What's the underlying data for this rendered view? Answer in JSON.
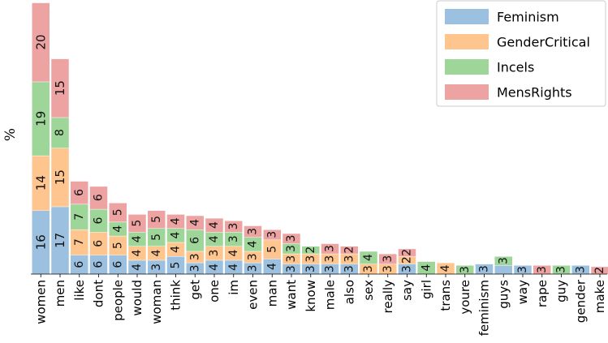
{
  "chart_data": {
    "type": "bar",
    "stacked": true,
    "title": "",
    "xlabel": "",
    "ylabel": "%",
    "ylim": [
      0,
      21
    ],
    "grid": false,
    "legend_position": "top-right",
    "categories": [
      "women",
      "men",
      "like",
      "dont",
      "people",
      "would",
      "woman",
      "think",
      "get",
      "one",
      "im",
      "even",
      "man",
      "want",
      "know",
      "male",
      "also",
      "sex",
      "really",
      "say",
      "girl",
      "trans",
      "youre",
      "feminism",
      "guys",
      "way",
      "rape",
      "guy",
      "gender",
      "make"
    ],
    "series": [
      {
        "name": "Feminism",
        "color": "#9cc0df",
        "values": [
          5,
          5.3,
          1.5,
          1.5,
          1.5,
          1.1,
          1.1,
          1.4,
          0.9,
          1.1,
          1.1,
          0.9,
          1.2,
          0.8,
          0.8,
          0.8,
          0.8,
          0,
          0,
          0.8,
          0,
          0,
          0,
          0.8,
          0.7,
          0.7,
          0,
          0,
          0.7,
          0
        ],
        "labels": [
          "16",
          "17",
          "6",
          "6",
          "6",
          "4",
          "3",
          "5",
          "3",
          "4",
          "4",
          "3",
          "4",
          "3",
          "3",
          "3",
          "3",
          "",
          "",
          "3",
          "",
          "",
          "",
          "3",
          "",
          "3",
          "",
          "",
          "3",
          ""
        ]
      },
      {
        "name": "GenderCritical",
        "color": "#ffc58e",
        "values": [
          4.3,
          4.6,
          2.0,
          1.8,
          1.5,
          1.1,
          1.1,
          1.1,
          0.9,
          1.1,
          1.1,
          0.9,
          1.5,
          0.8,
          0.8,
          0.8,
          0.8,
          0.8,
          0.8,
          0.6,
          0,
          0.9,
          0,
          0,
          0,
          0,
          0,
          0,
          0,
          0
        ],
        "labels": [
          "14",
          "15",
          "7",
          "6",
          "5",
          "4",
          "4",
          "4",
          "3",
          "3",
          "4",
          "3",
          "5",
          "3",
          "3",
          "3",
          "3",
          "3",
          "3",
          "2",
          "",
          "4",
          "",
          "",
          "",
          "",
          "",
          "",
          "",
          ""
        ]
      },
      {
        "name": "Incels",
        "color": "#9ed69a",
        "values": [
          5.8,
          2.4,
          2.0,
          1.8,
          1.1,
          1.1,
          1.4,
          1.1,
          1.7,
          1.1,
          1.1,
          1.1,
          0,
          0.8,
          0.6,
          0,
          0,
          1.0,
          0,
          0,
          1.0,
          0,
          0.7,
          0,
          0.7,
          0,
          0,
          0.7,
          0,
          0
        ],
        "labels": [
          "19",
          "8",
          "7",
          "6",
          "4",
          "4",
          "5",
          "4",
          "6",
          "4",
          "3",
          "4",
          "",
          "3",
          "2",
          "",
          "",
          "4",
          "",
          "",
          "4",
          "",
          "3",
          "",
          "3",
          "",
          "",
          "3",
          "",
          ""
        ]
      },
      {
        "name": "MensRights",
        "color": "#eea3a3",
        "values": [
          6.2,
          4.6,
          1.8,
          1.8,
          1.5,
          1.4,
          1.4,
          1.1,
          1.1,
          1.1,
          0.9,
          0.9,
          0.8,
          0.8,
          0,
          0.8,
          0.6,
          0,
          0.8,
          0.6,
          0,
          0,
          0,
          0,
          0,
          0,
          0.7,
          0,
          0,
          0.6
        ],
        "labels": [
          "20",
          "15",
          "6",
          "6",
          "5",
          "5",
          "5",
          "4",
          "4",
          "4",
          "3",
          "3",
          "3",
          "3",
          "",
          "3",
          "2",
          "",
          "3",
          "2",
          "",
          "",
          "",
          "",
          "",
          "",
          "3",
          "",
          "",
          "2"
        ]
      }
    ]
  }
}
